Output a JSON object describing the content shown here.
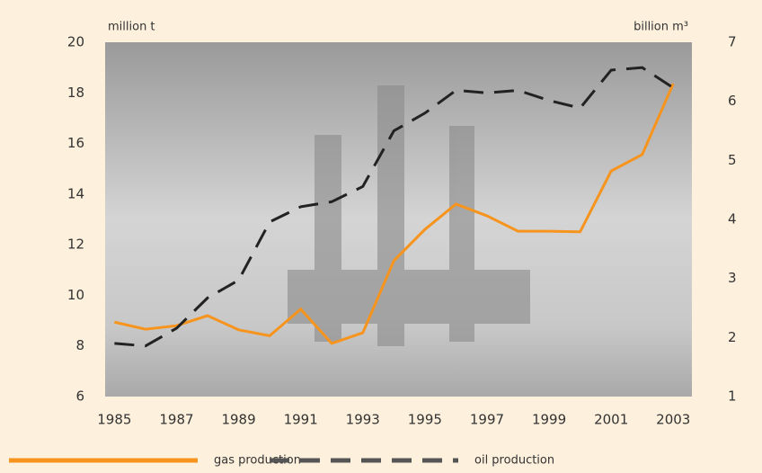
{
  "chart_data": {
    "type": "line",
    "ylabel": "million t",
    "y2label": "billion m³",
    "x": [
      1985,
      1986,
      1987,
      1988,
      1989,
      1990,
      1991,
      1992,
      1993,
      1994,
      1995,
      1996,
      1997,
      1998,
      1999,
      2000,
      2001,
      2002,
      2003
    ],
    "xlim": [
      1984.7,
      2003.6
    ],
    "xticks": [
      1985,
      1987,
      1989,
      1991,
      1993,
      1995,
      1997,
      1999,
      2001,
      2003
    ],
    "ylim": [
      6,
      20
    ],
    "yticks": [
      6,
      8,
      10,
      12,
      14,
      16,
      18,
      20
    ],
    "y2lim": [
      1,
      7
    ],
    "y2ticks": [
      1,
      2,
      3,
      4,
      5,
      6,
      7
    ],
    "legend": "bottom",
    "series": [
      {
        "name": "gas production",
        "color": "#f7941d",
        "dash": false,
        "axis": "y2",
        "values": [
          2.26,
          2.14,
          2.2,
          2.37,
          2.13,
          2.03,
          2.48,
          1.9,
          2.08,
          3.3,
          3.83,
          4.26,
          4.06,
          3.8,
          3.8,
          3.79,
          4.82,
          5.1,
          6.3
        ]
      },
      {
        "name": "oil production",
        "color": "#222222",
        "dash": true,
        "axis": "y",
        "values": [
          8.1,
          8.0,
          8.7,
          9.9,
          10.6,
          12.9,
          13.5,
          13.7,
          14.3,
          16.5,
          17.2,
          18.1,
          18.0,
          18.1,
          17.7,
          17.4,
          18.9,
          19.0,
          18.2
        ]
      }
    ]
  }
}
